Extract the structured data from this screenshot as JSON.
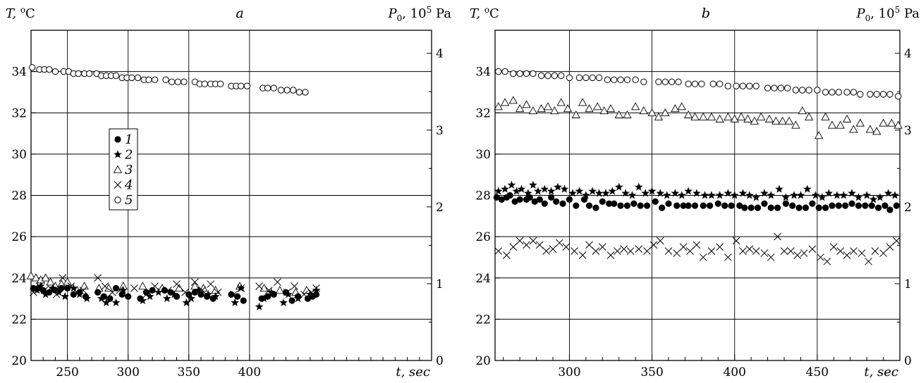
{
  "chart_data": [
    {
      "type": "scatter",
      "title": "a",
      "xlabel": "t, sec",
      "ylabel_left": "T, °C",
      "ylabel_right": "P0, 10^5 Pa",
      "ylabel_right_parts": {
        "main": "P",
        "sub": "0",
        "mid": ", 10",
        "sup": "5",
        "end": " Pa"
      },
      "ylabel_left_parts": {
        "main": "T, ",
        "sup": "o",
        "end": "C"
      },
      "xlim": [
        220,
        550
      ],
      "ylim_left": [
        20,
        36
      ],
      "ylim_right": [
        0,
        4.3
      ],
      "xticks": [
        250,
        300,
        350,
        400
      ],
      "yticks_left": [
        20,
        22,
        24,
        26,
        28,
        30,
        32,
        34
      ],
      "yticks_right": [
        0,
        1,
        2,
        3,
        4
      ],
      "grid": true,
      "legend_placement": "upper-left",
      "legend": [
        {
          "label": "1",
          "marker": "filled-circle"
        },
        {
          "label": "2",
          "marker": "star"
        },
        {
          "label": "3",
          "marker": "open-triangle"
        },
        {
          "label": "4",
          "marker": "cross"
        },
        {
          "label": "5",
          "marker": "open-circle"
        }
      ],
      "series": [
        {
          "name": "1",
          "marker": "filled-circle",
          "x": [
            222,
            226,
            230,
            235,
            240,
            245,
            250,
            255,
            260,
            265,
            275,
            280,
            285,
            290,
            295,
            300,
            310,
            315,
            320,
            330,
            335,
            340,
            350,
            355,
            360,
            365,
            370,
            385,
            390,
            395,
            410,
            415,
            420,
            430,
            435,
            440,
            448,
            452,
            455
          ],
          "y": [
            23.5,
            23.5,
            23.4,
            23.3,
            23.4,
            23.5,
            23.5,
            23.2,
            23.3,
            23.1,
            23.3,
            23.1,
            23.0,
            23.5,
            23.2,
            23.1,
            23.0,
            23.3,
            23.4,
            23.4,
            23.3,
            23.1,
            23.2,
            23.3,
            23.2,
            23.1,
            23.0,
            23.2,
            23.1,
            22.9,
            23.0,
            23.1,
            23.2,
            23.3,
            22.9,
            23.1,
            23.0,
            23.1,
            23.2
          ]
        },
        {
          "name": "2",
          "marker": "star",
          "x": [
            225,
            228,
            232,
            238,
            243,
            248,
            255,
            260,
            266,
            278,
            282,
            290,
            296,
            312,
            318,
            325,
            332,
            338,
            348,
            352,
            358,
            366,
            372,
            388,
            393,
            408,
            412,
            418,
            428,
            432,
            440,
            450,
            455
          ],
          "y": [
            23.4,
            23.6,
            23.2,
            23.5,
            23.3,
            23.1,
            23.5,
            23.2,
            23.0,
            23.0,
            22.8,
            22.8,
            23.4,
            22.9,
            23.1,
            23.3,
            23.0,
            23.2,
            22.8,
            23.0,
            23.4,
            23.2,
            23.1,
            22.8,
            23.5,
            22.6,
            23.0,
            23.3,
            22.8,
            23.2,
            23.0,
            23.2,
            23.4
          ]
        },
        {
          "name": "3",
          "marker": "open-triangle",
          "x": [
            220,
            224,
            228,
            232,
            236,
            240,
            245,
            250,
            258,
            264,
            276,
            284,
            296,
            312,
            328,
            342,
            355,
            362,
            372,
            392,
            412,
            425,
            438,
            447
          ],
          "y": [
            24.1,
            24.0,
            23.9,
            24.0,
            23.8,
            23.6,
            23.7,
            23.8,
            23.4,
            23.6,
            23.5,
            23.5,
            23.6,
            23.6,
            23.5,
            23.5,
            23.6,
            23.5,
            23.4,
            23.6,
            23.5,
            23.4,
            23.3,
            23.4
          ]
        },
        {
          "name": "4",
          "marker": "cross",
          "x": [
            222,
            227,
            231,
            236,
            241,
            246,
            253,
            258,
            263,
            275,
            281,
            287,
            293,
            305,
            315,
            322,
            333,
            340,
            347,
            355,
            361,
            368,
            374,
            387,
            393,
            408,
            416,
            423,
            431,
            437,
            445,
            451,
            455
          ],
          "y": [
            23.3,
            23.6,
            23.4,
            23.5,
            23.2,
            24.0,
            23.6,
            23.3,
            23.4,
            24.0,
            23.6,
            23.3,
            23.4,
            23.5,
            23.2,
            23.6,
            23.4,
            23.7,
            23.3,
            23.8,
            23.4,
            23.7,
            23.3,
            23.2,
            23.5,
            23.6,
            23.4,
            23.8,
            23.3,
            23.6,
            23.2,
            23.3,
            23.5
          ]
        },
        {
          "name": "5",
          "marker": "open-circle",
          "x": [
            221,
            227,
            231,
            235,
            240,
            247,
            251,
            255,
            259,
            264,
            268,
            274,
            278,
            282,
            286,
            290,
            295,
            299,
            303,
            308,
            313,
            317,
            322,
            331,
            336,
            341,
            346,
            355,
            359,
            363,
            368,
            372,
            376,
            385,
            389,
            393,
            398,
            411,
            415,
            420,
            426,
            431,
            436,
            441,
            446
          ],
          "y": [
            34.2,
            34.1,
            34.1,
            34.1,
            34.0,
            34.0,
            34.0,
            33.9,
            33.9,
            33.9,
            33.9,
            33.9,
            33.8,
            33.8,
            33.8,
            33.8,
            33.7,
            33.7,
            33.7,
            33.7,
            33.6,
            33.6,
            33.6,
            33.6,
            33.5,
            33.5,
            33.5,
            33.5,
            33.4,
            33.4,
            33.4,
            33.4,
            33.4,
            33.3,
            33.3,
            33.3,
            33.3,
            33.2,
            33.2,
            33.2,
            33.1,
            33.1,
            33.1,
            33.0,
            33.0
          ]
        }
      ]
    },
    {
      "type": "scatter",
      "title": "b",
      "xlabel": "t, sec",
      "ylabel_left": "T, °C",
      "ylabel_right": "P0, 10^5 Pa",
      "ylabel_right_parts": {
        "main": "P",
        "sub": "0",
        "mid": ", 10",
        "sup": "5",
        "end": " Pa"
      },
      "ylabel_left_parts": {
        "main": "T, ",
        "sup": "o",
        "end": "C"
      },
      "xlim": [
        255,
        500
      ],
      "ylim_left": [
        20,
        36
      ],
      "ylim_right": [
        0,
        4.3
      ],
      "xticks": [
        300,
        350,
        400,
        450
      ],
      "yticks_left": [
        20,
        22,
        24,
        26,
        28,
        30,
        32,
        34
      ],
      "yticks_right": [
        0,
        1,
        2,
        3,
        4
      ],
      "grid": true,
      "series": [
        {
          "name": "1",
          "marker": "filled-circle",
          "x": [
            256,
            259,
            262,
            264,
            267,
            270,
            274,
            276,
            279,
            282,
            285,
            289,
            292,
            296,
            300,
            304,
            309,
            312,
            316,
            320,
            324,
            327,
            331,
            335,
            339,
            343,
            347,
            352,
            356,
            360,
            365,
            369,
            372,
            376,
            381,
            385,
            390,
            394,
            398,
            403,
            406,
            410,
            414,
            418,
            422,
            426,
            431,
            435,
            439,
            443,
            447,
            451,
            455,
            459,
            463,
            467,
            471,
            475,
            479,
            483,
            487,
            491,
            494,
            498
          ],
          "y": [
            27.9,
            27.8,
            27.9,
            28.0,
            27.7,
            27.8,
            27.8,
            27.9,
            27.7,
            27.8,
            27.6,
            27.9,
            27.7,
            27.6,
            27.8,
            27.5,
            27.8,
            27.5,
            27.4,
            27.7,
            27.6,
            27.6,
            27.5,
            27.5,
            27.6,
            27.5,
            27.5,
            27.7,
            27.4,
            27.6,
            27.5,
            27.5,
            27.5,
            27.5,
            27.5,
            27.5,
            27.6,
            27.5,
            27.5,
            27.5,
            27.4,
            27.4,
            27.4,
            27.6,
            27.4,
            27.4,
            27.6,
            27.5,
            27.4,
            27.4,
            27.6,
            27.4,
            27.4,
            27.5,
            27.5,
            27.5,
            27.6,
            27.5,
            27.5,
            27.5,
            27.4,
            27.5,
            27.3,
            27.5
          ]
        },
        {
          "name": "2",
          "marker": "star",
          "x": [
            257,
            261,
            265,
            268,
            271,
            275,
            278,
            281,
            285,
            289,
            293,
            297,
            302,
            306,
            310,
            314,
            318,
            322,
            326,
            330,
            334,
            338,
            342,
            346,
            350,
            355,
            359,
            364,
            368,
            372,
            377,
            382,
            386,
            391,
            396,
            400,
            405,
            409,
            413,
            418,
            422,
            427,
            431,
            436,
            440,
            444,
            449,
            453,
            457,
            462,
            466,
            471,
            475,
            480,
            484,
            488,
            493,
            497
          ],
          "y": [
            28.2,
            28.3,
            28.5,
            28.2,
            28.3,
            28.1,
            28.5,
            28.2,
            28.3,
            28.2,
            28.4,
            28.3,
            28.1,
            28.2,
            28.0,
            28.2,
            28.1,
            28.1,
            28.2,
            28.4,
            28.1,
            28.0,
            28.4,
            28.1,
            28.2,
            28.1,
            28.0,
            28.1,
            28.0,
            28.2,
            28.1,
            28.0,
            28.0,
            28.0,
            28.1,
            28.0,
            28.1,
            28.0,
            27.9,
            28.1,
            28.0,
            28.3,
            27.9,
            28.0,
            28.0,
            28.3,
            28.0,
            27.9,
            28.1,
            28.0,
            28.0,
            28.1,
            27.9,
            28.0,
            27.8,
            27.9,
            28.1,
            28.0
          ]
        },
        {
          "name": "3",
          "marker": "open-triangle",
          "x": [
            257,
            261,
            266,
            270,
            274,
            278,
            283,
            287,
            291,
            295,
            299,
            304,
            308,
            312,
            317,
            321,
            325,
            330,
            335,
            340,
            345,
            350,
            354,
            358,
            364,
            368,
            372,
            376,
            381,
            386,
            391,
            396,
            400,
            404,
            408,
            412,
            416,
            421,
            425,
            429,
            433,
            437,
            441,
            445,
            451,
            455,
            459,
            464,
            468,
            472,
            476,
            482,
            486,
            490,
            495,
            499
          ],
          "y": [
            32.3,
            32.5,
            32.6,
            32.2,
            32.4,
            32.1,
            32.2,
            32.3,
            32.1,
            32.5,
            32.2,
            31.9,
            32.5,
            32.2,
            32.3,
            32.1,
            32.2,
            31.9,
            31.9,
            32.3,
            32.1,
            32.0,
            31.8,
            32.0,
            32.2,
            32.3,
            31.9,
            31.8,
            31.8,
            31.8,
            31.7,
            31.8,
            31.7,
            31.8,
            31.7,
            31.6,
            31.8,
            31.7,
            31.6,
            31.6,
            31.6,
            31.4,
            32.1,
            31.8,
            30.9,
            31.8,
            31.4,
            31.4,
            31.7,
            31.2,
            31.5,
            31.2,
            31.1,
            31.5,
            31.5,
            31.4
          ]
        },
        {
          "name": "4",
          "marker": "cross",
          "x": [
            257,
            262,
            266,
            270,
            274,
            278,
            282,
            286,
            290,
            294,
            298,
            303,
            308,
            312,
            316,
            320,
            325,
            329,
            333,
            337,
            342,
            347,
            351,
            355,
            360,
            365,
            369,
            373,
            377,
            381,
            386,
            391,
            396,
            401,
            405,
            409,
            413,
            418,
            422,
            426,
            430,
            434,
            438,
            442,
            447,
            452,
            456,
            460,
            464,
            468,
            472,
            477,
            481,
            485,
            490,
            494,
            498
          ],
          "y": [
            25.3,
            25.1,
            25.5,
            25.8,
            25.6,
            25.8,
            25.6,
            25.3,
            25.4,
            25.7,
            25.5,
            25.3,
            25.1,
            25.6,
            25.3,
            25.5,
            25.1,
            25.3,
            25.4,
            25.3,
            25.4,
            25.3,
            25.6,
            25.8,
            25.3,
            25.2,
            25.5,
            25.3,
            25.6,
            25.0,
            25.3,
            25.5,
            25.0,
            25.8,
            25.3,
            25.4,
            25.3,
            25.2,
            25.0,
            26.0,
            25.3,
            25.3,
            25.1,
            25.2,
            25.4,
            25.0,
            24.8,
            25.5,
            25.3,
            25.1,
            25.3,
            25.2,
            24.8,
            25.3,
            25.2,
            25.5,
            25.8
          ]
        },
        {
          "name": "5",
          "marker": "open-circle",
          "x": [
            257,
            261,
            266,
            270,
            274,
            278,
            283,
            287,
            291,
            295,
            300,
            306,
            310,
            314,
            318,
            323,
            327,
            331,
            335,
            340,
            345,
            354,
            358,
            362,
            366,
            372,
            376,
            380,
            387,
            391,
            396,
            401,
            405,
            409,
            413,
            420,
            424,
            428,
            432,
            437,
            441,
            445,
            450,
            455,
            459,
            463,
            468,
            472,
            476,
            482,
            486,
            490,
            494,
            499
          ],
          "y": [
            34.0,
            34.0,
            33.9,
            33.9,
            33.9,
            33.9,
            33.8,
            33.8,
            33.8,
            33.8,
            33.7,
            33.7,
            33.7,
            33.7,
            33.7,
            33.6,
            33.6,
            33.6,
            33.6,
            33.6,
            33.5,
            33.5,
            33.5,
            33.5,
            33.5,
            33.4,
            33.4,
            33.4,
            33.4,
            33.4,
            33.3,
            33.3,
            33.3,
            33.3,
            33.3,
            33.2,
            33.2,
            33.2,
            33.2,
            33.1,
            33.1,
            33.1,
            33.1,
            33.0,
            33.0,
            33.0,
            33.0,
            33.0,
            32.9,
            32.9,
            32.9,
            32.9,
            32.9,
            32.8
          ]
        }
      ]
    }
  ]
}
